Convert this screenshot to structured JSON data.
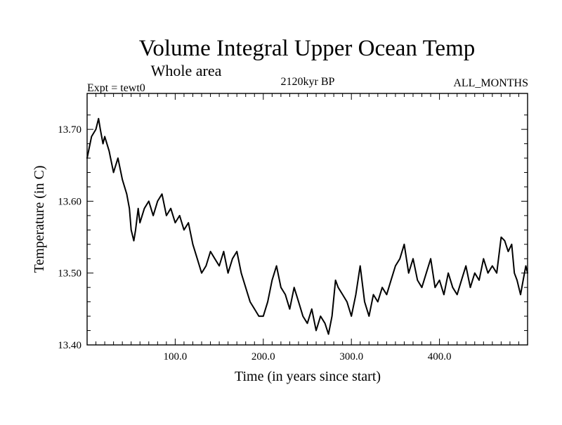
{
  "chart_data": {
    "type": "line",
    "title": "Volume Integral Upper Ocean Temp",
    "subtitle": "Whole area",
    "experiment_label": "Expt = tewt0",
    "period_label": "2120kyr BP",
    "months_label": "ALL_MONTHS",
    "xlabel": "Time (in years since start)",
    "ylabel": "Temperature (in C)",
    "xlim": [
      0,
      500
    ],
    "ylim": [
      13.4,
      13.75
    ],
    "x_ticks": [
      100,
      200,
      300,
      400
    ],
    "x_tick_labels": [
      "100.0",
      "200.0",
      "300.0",
      "400.0"
    ],
    "y_ticks": [
      13.4,
      13.5,
      13.6,
      13.7
    ],
    "y_tick_labels": [
      "13.40",
      "13.50",
      "13.60",
      "13.70"
    ],
    "grid": false,
    "series": [
      {
        "name": "Volume Integral Upper Ocean Temp",
        "x": [
          0,
          5,
          10,
          13,
          15,
          18,
          20,
          25,
          30,
          35,
          40,
          45,
          48,
          50,
          53,
          55,
          58,
          60,
          65,
          70,
          75,
          80,
          85,
          90,
          95,
          100,
          105,
          110,
          115,
          120,
          125,
          130,
          135,
          140,
          145,
          150,
          155,
          160,
          165,
          170,
          175,
          180,
          185,
          190,
          195,
          200,
          205,
          210,
          215,
          220,
          225,
          230,
          235,
          240,
          245,
          250,
          255,
          260,
          265,
          270,
          274,
          278,
          282,
          285,
          290,
          295,
          300,
          305,
          310,
          315,
          320,
          325,
          330,
          335,
          340,
          345,
          350,
          355,
          360,
          365,
          370,
          375,
          380,
          385,
          390,
          395,
          400,
          405,
          410,
          415,
          420,
          425,
          430,
          435,
          440,
          445,
          450,
          455,
          460,
          465,
          470,
          474,
          478,
          482,
          485,
          488,
          490,
          492,
          495,
          498,
          500
        ],
        "values": [
          13.66,
          13.69,
          13.7,
          13.715,
          13.7,
          13.68,
          13.69,
          13.67,
          13.64,
          13.66,
          13.63,
          13.61,
          13.59,
          13.56,
          13.545,
          13.56,
          13.59,
          13.57,
          13.59,
          13.6,
          13.58,
          13.6,
          13.61,
          13.58,
          13.59,
          13.57,
          13.58,
          13.56,
          13.57,
          13.54,
          13.52,
          13.5,
          13.51,
          13.53,
          13.52,
          13.51,
          13.53,
          13.5,
          13.52,
          13.53,
          13.5,
          13.48,
          13.46,
          13.45,
          13.44,
          13.44,
          13.46,
          13.49,
          13.51,
          13.48,
          13.47,
          13.45,
          13.48,
          13.46,
          13.44,
          13.43,
          13.45,
          13.42,
          13.44,
          13.43,
          13.415,
          13.44,
          13.49,
          13.48,
          13.47,
          13.46,
          13.44,
          13.47,
          13.51,
          13.46,
          13.44,
          13.47,
          13.46,
          13.48,
          13.47,
          13.49,
          13.51,
          13.52,
          13.54,
          13.5,
          13.52,
          13.49,
          13.48,
          13.5,
          13.52,
          13.48,
          13.49,
          13.47,
          13.5,
          13.48,
          13.47,
          13.49,
          13.51,
          13.48,
          13.5,
          13.49,
          13.52,
          13.5,
          13.51,
          13.5,
          13.55,
          13.545,
          13.53,
          13.54,
          13.5,
          13.49,
          13.48,
          13.47,
          13.49,
          13.51,
          13.5
        ]
      }
    ]
  }
}
